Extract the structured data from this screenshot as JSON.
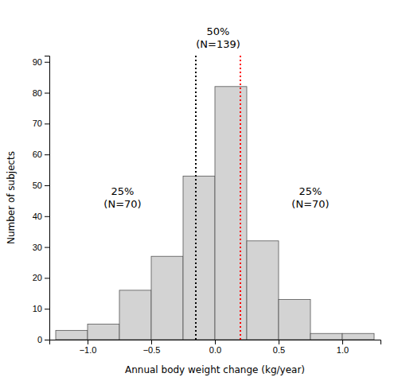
{
  "chart_data": {
    "type": "histogram",
    "bins": [
      -1.25,
      -1.0,
      -0.75,
      -0.5,
      -0.25,
      0.0,
      0.25,
      0.5,
      0.75,
      1.0,
      1.25
    ],
    "values": [
      3,
      5,
      16,
      27,
      53,
      82,
      32,
      13,
      2,
      2
    ],
    "color": "#d3d3d3",
    "xlabel": "Annual body weight change (kg/year)",
    "ylabel": "Number of subjects",
    "xlim": [
      -1.3,
      1.3
    ],
    "ylim": [
      0,
      92
    ],
    "xticks": [
      {
        "value": -1.0,
        "label": "−1.0"
      },
      {
        "value": -0.5,
        "label": "−0.5"
      },
      {
        "value": 0.0,
        "label": "0.0"
      },
      0.5,
      {
        "value": 1.0,
        "label": "1.0"
      }
    ],
    "yticks": [
      0,
      10,
      20,
      30,
      40,
      50,
      60,
      70,
      80,
      90
    ],
    "grid": false,
    "vlines": [
      {
        "x": -0.15,
        "color": "black",
        "line_style": "dotted"
      },
      {
        "x": 0.2,
        "color": "red",
        "line_style": "dotted"
      }
    ],
    "annotations": [
      {
        "text": "50%\n(N=139)"
      },
      {
        "text": "25%\n(N=70)"
      },
      {
        "text": "25%\n(N=70)"
      }
    ]
  }
}
